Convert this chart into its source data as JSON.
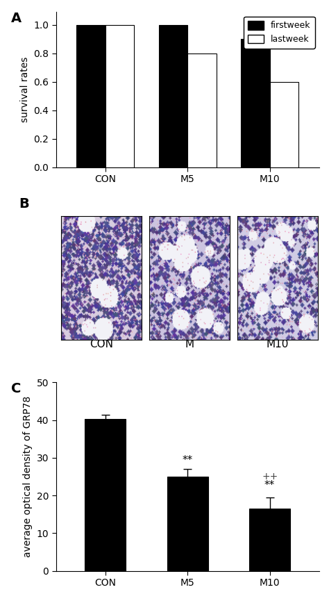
{
  "panel_A": {
    "categories": [
      "CON",
      "M5",
      "M10"
    ],
    "firstweek": [
      1.0,
      1.0,
      0.9
    ],
    "lastweek": [
      1.0,
      0.8,
      0.6
    ],
    "ylabel": "survival rates",
    "ylim": [
      0,
      1.09
    ],
    "yticks": [
      0.0,
      0.2,
      0.4,
      0.6,
      0.8,
      1.0
    ],
    "bar_width": 0.35,
    "firstweek_color": "#000000",
    "lastweek_color": "#ffffff",
    "lastweek_edgecolor": "#000000",
    "legend_labels": [
      "firstweek",
      "lastweek"
    ],
    "label": "A"
  },
  "panel_B": {
    "label": "B",
    "bottom_labels": [
      "CON",
      "M",
      "M10"
    ],
    "bg_colors": [
      "#d8cce0",
      "#ccc4e0",
      "#d0cce4"
    ],
    "cell_density": [
      0.7,
      0.5,
      0.4
    ],
    "vacuole_density": [
      0.08,
      0.2,
      0.25
    ]
  },
  "panel_C": {
    "categories": [
      "CON",
      "M5",
      "M10"
    ],
    "values": [
      40.3,
      25.0,
      16.5
    ],
    "errors": [
      1.2,
      2.0,
      3.0
    ],
    "ylabel": "average optical density of GRP78",
    "ylim": [
      0,
      50
    ],
    "yticks": [
      0,
      10,
      20,
      30,
      40,
      50
    ],
    "bar_color": "#000000",
    "bar_width": 0.5,
    "label": "C"
  },
  "figure": {
    "background_color": "#ffffff",
    "label_fontsize": 14,
    "tick_fontsize": 10,
    "axis_fontsize": 10
  }
}
